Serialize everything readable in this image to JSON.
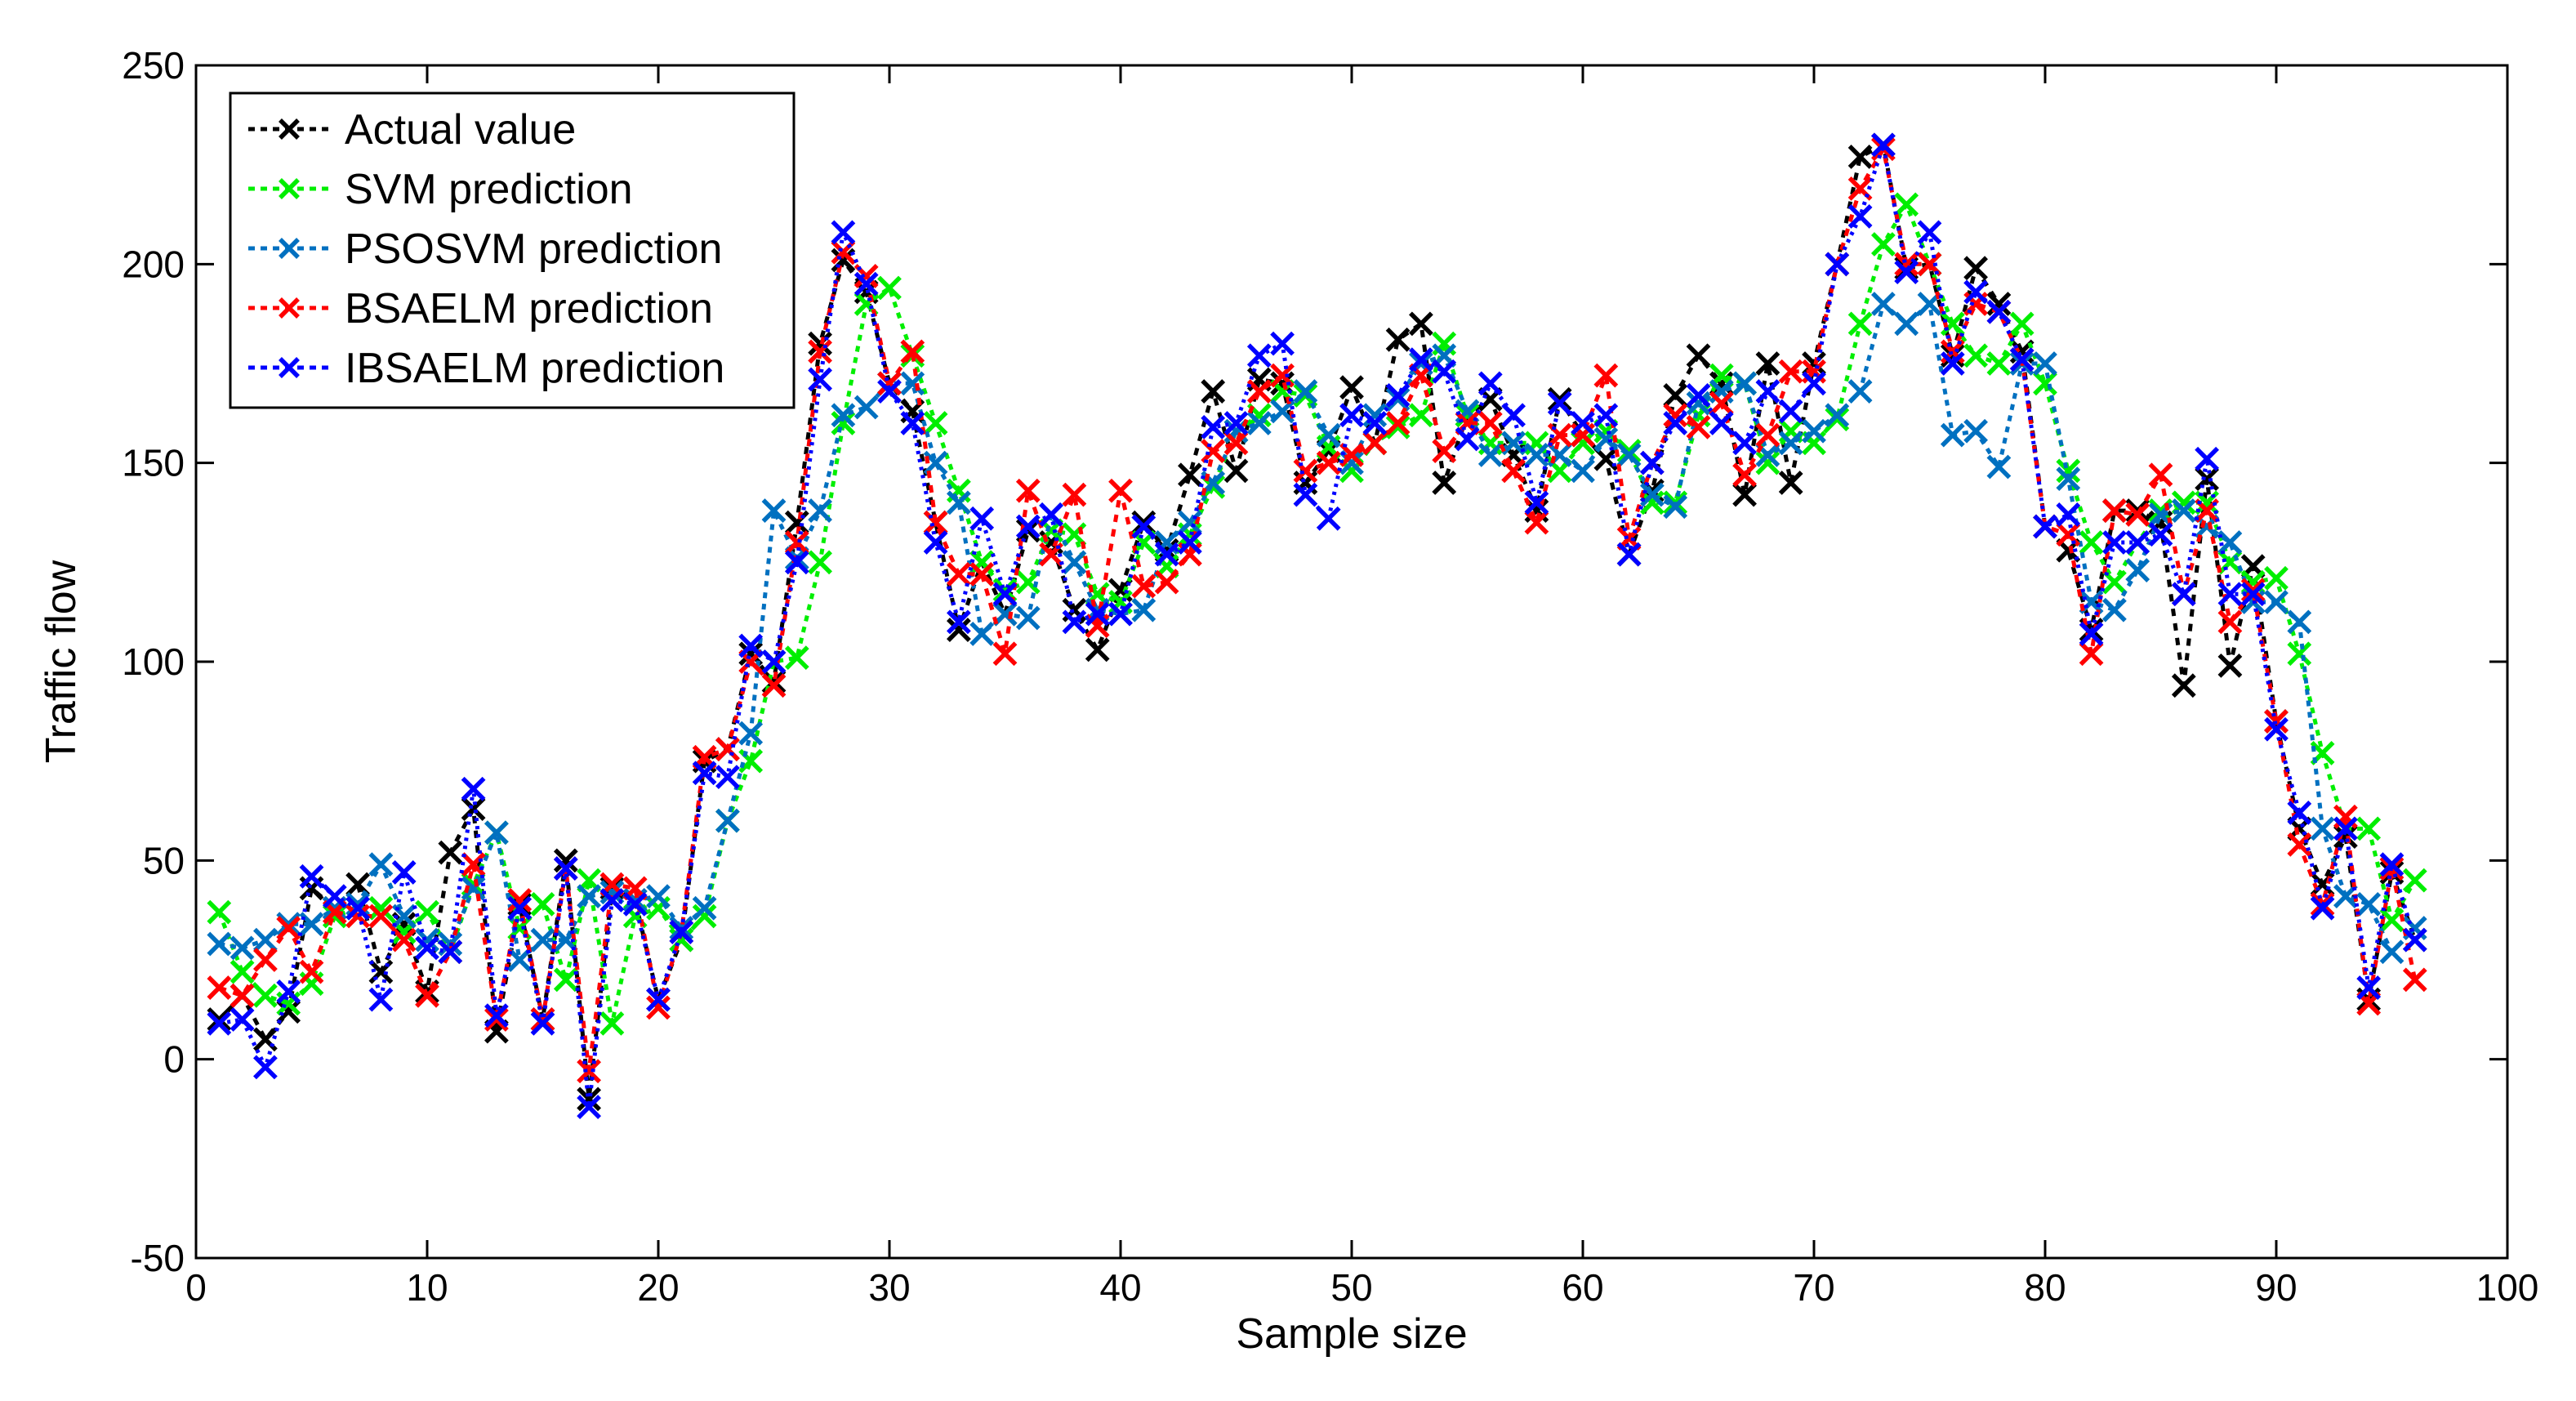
{
  "chart_data": {
    "type": "line",
    "title": "",
    "xlabel": "Sample size",
    "ylabel": "Traffic flow",
    "xlim": [
      0,
      100
    ],
    "ylim": [
      -50,
      250
    ],
    "xticks": [
      0,
      10,
      20,
      30,
      40,
      50,
      60,
      70,
      80,
      90,
      100
    ],
    "yticks": [
      -50,
      0,
      50,
      100,
      150,
      200,
      250
    ],
    "legend_position": "top-left",
    "x": [
      1,
      2,
      3,
      4,
      5,
      6,
      7,
      8,
      9,
      10,
      11,
      12,
      13,
      14,
      15,
      16,
      17,
      18,
      19,
      20,
      21,
      22,
      23,
      24,
      25,
      26,
      27,
      28,
      29,
      30,
      31,
      32,
      33,
      34,
      35,
      36,
      37,
      38,
      39,
      40,
      41,
      42,
      43,
      44,
      45,
      46,
      47,
      48,
      49,
      50,
      51,
      52,
      53,
      54,
      55,
      56,
      57,
      58,
      59,
      60,
      61,
      62,
      63,
      64,
      65,
      66,
      67,
      68,
      69,
      70,
      71,
      72,
      73,
      74,
      75,
      76,
      77,
      78,
      79,
      80,
      81,
      82,
      83,
      84,
      85,
      86,
      87,
      88,
      89,
      90,
      91,
      92,
      93,
      94,
      95,
      96
    ],
    "series": [
      {
        "name": "Actual value",
        "color": "#000000",
        "values": [
          10,
          16,
          5,
          12,
          43,
          38,
          44,
          22,
          34,
          17,
          52,
          63,
          7,
          39,
          10,
          50,
          -10,
          43,
          40,
          15,
          30,
          75,
          78,
          102,
          95,
          135,
          180,
          201,
          193,
          170,
          163,
          135,
          108,
          125,
          112,
          133,
          130,
          113,
          103,
          118,
          135,
          128,
          147,
          168,
          148,
          171,
          170,
          145,
          153,
          169,
          155,
          181,
          185,
          145,
          162,
          166,
          152,
          138,
          166,
          157,
          151,
          127,
          143,
          167,
          177,
          170,
          142,
          175,
          145,
          175,
          200,
          227,
          230,
          199,
          200,
          177,
          199,
          190,
          178,
          134,
          128,
          108,
          138,
          138,
          135,
          94,
          146,
          99,
          124,
          85,
          58,
          44,
          56,
          15,
          47,
          30
        ],
        "marker": "x",
        "dash": "9,9"
      },
      {
        "name": "SVM prediction",
        "color": "#00ee00",
        "values": [
          37,
          22,
          16,
          14,
          19,
          36,
          38,
          38,
          32,
          37,
          27,
          44,
          57,
          33,
          39,
          20,
          45,
          9,
          36,
          38,
          30,
          36,
          60,
          75,
          100,
          101,
          125,
          160,
          190,
          194,
          177,
          160,
          143,
          125,
          118,
          120,
          133,
          132,
          117,
          115,
          130,
          124,
          132,
          144,
          158,
          162,
          168,
          167,
          154,
          148,
          155,
          159,
          162,
          180,
          162,
          155,
          155,
          155,
          148,
          155,
          158,
          153,
          140,
          140,
          162,
          172,
          170,
          150,
          158,
          155,
          161,
          185,
          205,
          215,
          200,
          185,
          177,
          175,
          185,
          170,
          148,
          130,
          120,
          130,
          138,
          140,
          140,
          125,
          120,
          121,
          102,
          77,
          58,
          58,
          35,
          45
        ],
        "marker": "x",
        "dash": "7,7"
      },
      {
        "name": "PSOSVM prediction",
        "color": "#0070c0",
        "values": [
          29,
          28,
          30,
          34,
          34,
          38,
          39,
          49,
          36,
          30,
          29,
          43,
          57,
          25,
          30,
          30,
          41,
          42,
          40,
          41,
          33,
          38,
          60,
          82,
          138,
          126,
          138,
          162,
          164,
          170,
          170,
          150,
          140,
          107,
          112,
          111,
          137,
          125,
          113,
          112,
          113,
          130,
          135,
          145,
          158,
          160,
          163,
          168,
          157,
          150,
          162,
          166,
          175,
          177,
          163,
          152,
          155,
          152,
          152,
          148,
          156,
          152,
          142,
          139,
          165,
          168,
          170,
          152,
          155,
          158,
          162,
          168,
          190,
          185,
          190,
          157,
          158,
          149,
          175,
          175,
          146,
          115,
          113,
          123,
          137,
          138,
          134,
          130,
          115,
          115,
          110,
          58,
          41,
          39,
          27,
          33
        ],
        "marker": "x",
        "dash": "7,7"
      },
      {
        "name": "BSAELM prediction",
        "color": "#ff0000",
        "values": [
          18,
          16,
          25,
          33,
          22,
          37,
          36,
          36,
          30,
          16,
          27,
          49,
          10,
          40,
          10,
          48,
          -3,
          44,
          43,
          13,
          32,
          76,
          78,
          100,
          94,
          130,
          178,
          203,
          197,
          170,
          178,
          135,
          122,
          122,
          102,
          143,
          127,
          142,
          109,
          143,
          119,
          120,
          127,
          153,
          155,
          168,
          172,
          148,
          150,
          152,
          155,
          160,
          172,
          153,
          160,
          160,
          148,
          135,
          157,
          157,
          172,
          131,
          150,
          162,
          159,
          165,
          147,
          157,
          173,
          173,
          200,
          219,
          229,
          200,
          200,
          178,
          190,
          188,
          176,
          134,
          132,
          102,
          138,
          137,
          147,
          117,
          138,
          110,
          118,
          85,
          54,
          39,
          61,
          14,
          48,
          20
        ],
        "marker": "x",
        "dash": "9,9"
      },
      {
        "name": "IBSAELM prediction",
        "color": "#0000ff",
        "values": [
          9,
          10,
          -2,
          17,
          46,
          41,
          38,
          15,
          47,
          28,
          27,
          68,
          11,
          38,
          9,
          48,
          -12,
          40,
          39,
          15,
          32,
          72,
          71,
          104,
          100,
          125,
          171,
          208,
          195,
          168,
          160,
          130,
          110,
          136,
          117,
          134,
          137,
          110,
          112,
          112,
          134,
          127,
          130,
          159,
          160,
          177,
          180,
          142,
          136,
          162,
          160,
          167,
          176,
          173,
          156,
          170,
          162,
          140,
          165,
          160,
          162,
          127,
          150,
          160,
          167,
          160,
          155,
          168,
          163,
          170,
          200,
          212,
          230,
          198,
          208,
          175,
          193,
          188,
          176,
          134,
          137,
          107,
          130,
          130,
          132,
          117,
          151,
          117,
          117,
          83,
          62,
          38,
          58,
          18,
          49,
          30
        ],
        "marker": "x",
        "dash": "4,6"
      }
    ]
  }
}
